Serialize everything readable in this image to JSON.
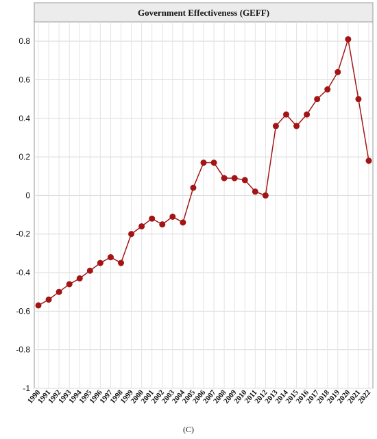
{
  "caption": "(C)",
  "chart_data": {
    "type": "line",
    "title": "Government Effectiveness (GEFF)",
    "xlabel": "",
    "ylabel": "",
    "ylim": [
      -1,
      0.9
    ],
    "yticks": [
      0.8,
      0.6,
      0.4,
      0.2,
      0,
      -0.2,
      -0.4,
      -0.6,
      -0.8,
      -1
    ],
    "ytick_labels": [
      "0.8",
      "0.6",
      "0.4",
      "0.2",
      "0",
      "-0.2",
      "-0.4",
      "-0.6",
      "-0.8",
      "-1"
    ],
    "grid": true,
    "categories": [
      "1990",
      "1991",
      "1992",
      "1993",
      "1994",
      "1995",
      "1996",
      "1997",
      "1998",
      "1999",
      "2000",
      "2001",
      "2002",
      "2003",
      "2004",
      "2005",
      "2006",
      "2007",
      "2008",
      "2009",
      "2010",
      "2011",
      "2012",
      "2013",
      "2014",
      "2015",
      "2016",
      "2017",
      "2018",
      "2019",
      "2020",
      "2021",
      "2022"
    ],
    "series": [
      {
        "values": [
          -0.57,
          -0.54,
          -0.5,
          -0.46,
          -0.43,
          -0.39,
          -0.35,
          -0.32,
          -0.35,
          -0.2,
          -0.16,
          -0.12,
          -0.15,
          -0.11,
          -0.14,
          0.04,
          0.17,
          0.17,
          0.09,
          0.09,
          0.08,
          0.02,
          -0.0,
          0.36,
          0.42,
          0.36,
          0.42,
          0.5,
          0.55,
          0.64,
          0.81,
          0.5,
          0.18
        ],
        "color": "#a31515"
      }
    ]
  }
}
